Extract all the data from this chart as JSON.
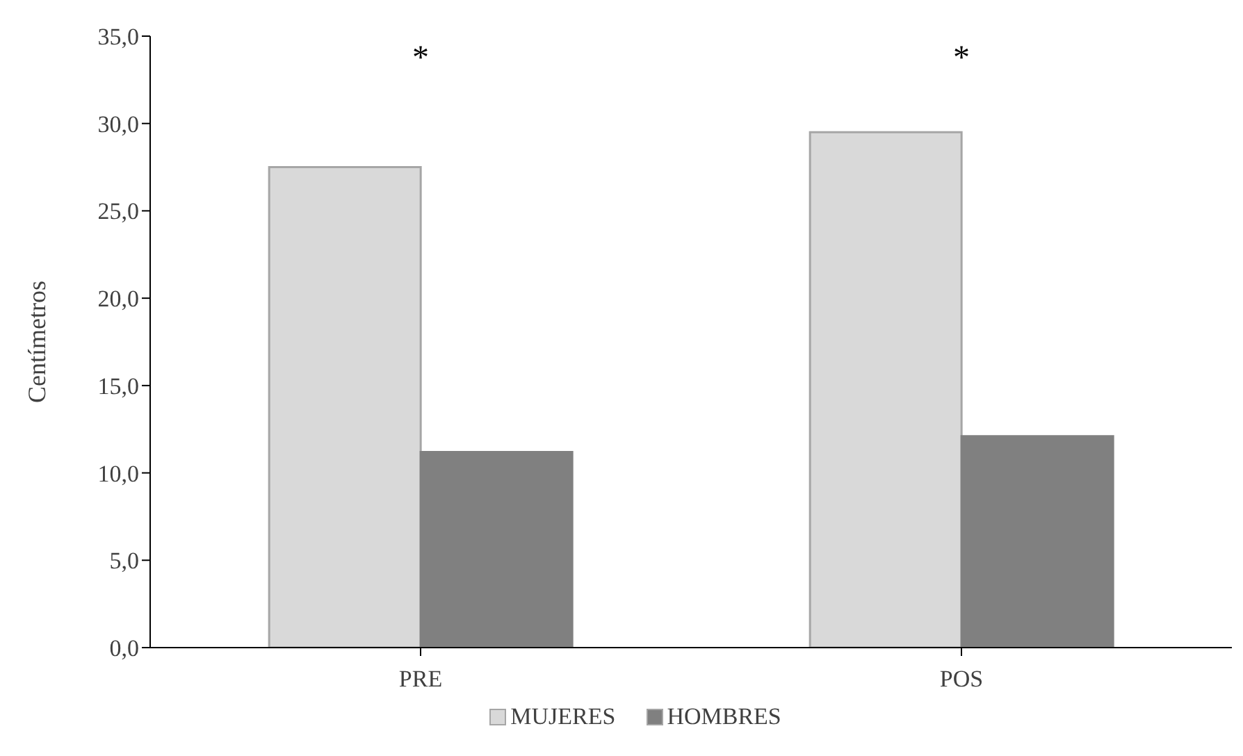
{
  "chart_data": {
    "type": "bar",
    "categories": [
      "PRE",
      "POS"
    ],
    "series": [
      {
        "name": "MUJERES",
        "color": "#d9d9d9",
        "values": [
          27.5,
          29.5
        ]
      },
      {
        "name": "HOMBRES",
        "color": "#808080",
        "values": [
          11.2,
          12.1
        ]
      }
    ],
    "ylabel": "Centímetros",
    "ylim": [
      0,
      35
    ],
    "yticks": [
      {
        "value": 0,
        "label": "0,0"
      },
      {
        "value": 5,
        "label": "5,0"
      },
      {
        "value": 10,
        "label": "10,0"
      },
      {
        "value": 15,
        "label": "15,0"
      },
      {
        "value": 20,
        "label": "20,0"
      },
      {
        "value": 25,
        "label": "25,0"
      },
      {
        "value": 30,
        "label": "30,0"
      },
      {
        "value": 35,
        "label": "35,0"
      }
    ],
    "annotations": [
      "*",
      "*"
    ],
    "grid": false,
    "legend": "bottom"
  }
}
